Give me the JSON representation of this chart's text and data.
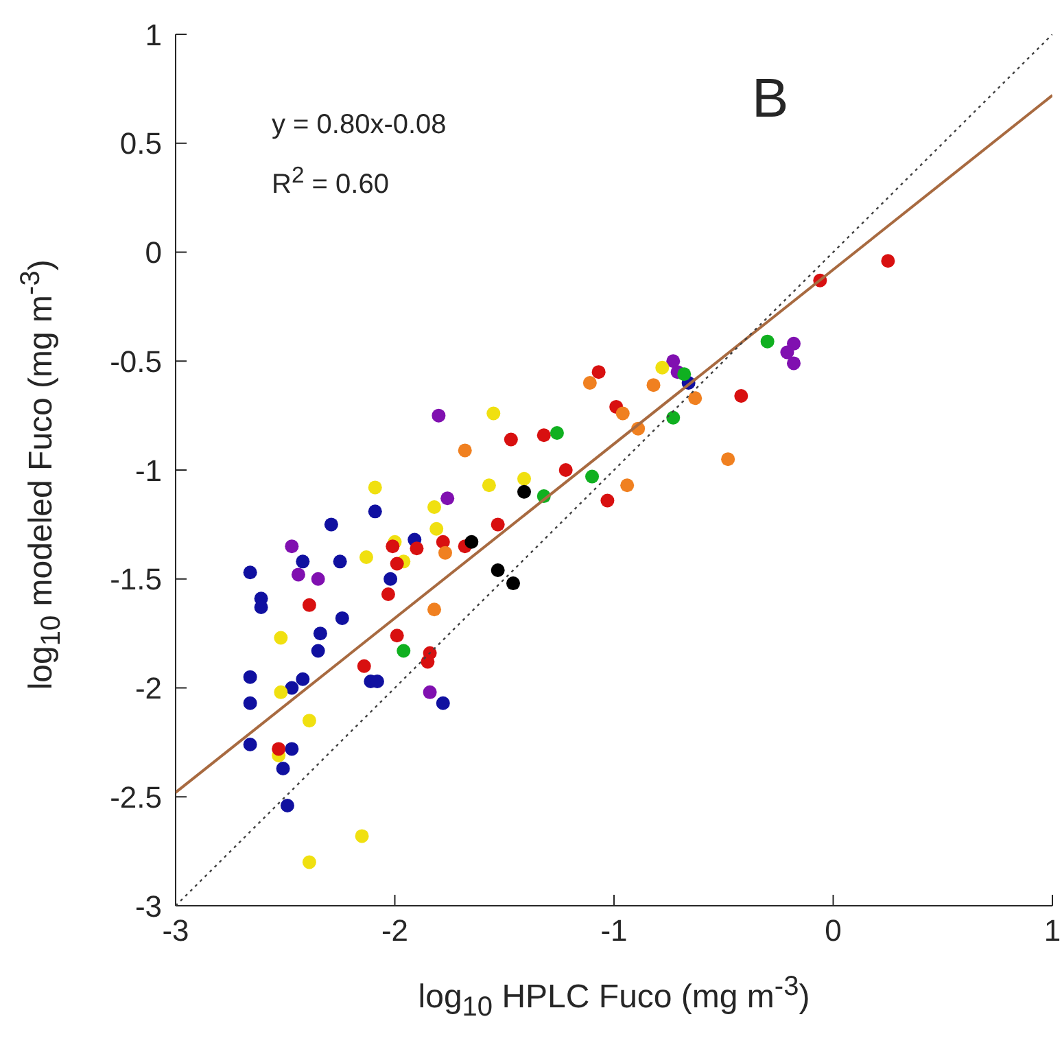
{
  "chart_data": {
    "type": "scatter",
    "xlabel": "log$_{10}$ HPLC Fuco (mg m$^{-3}$)",
    "ylabel": "log$_{10}$ modeled Fuco (mg m$^{-3}$)",
    "annotations": [
      "y = 0.80x-0.08",
      "R$^{2}$ = 0.60",
      "B"
    ],
    "xlim": [
      -3,
      1
    ],
    "ylim": [
      -3,
      1
    ],
    "xticks": [
      -3,
      -2,
      -1,
      0,
      1
    ],
    "yticks": [
      -3,
      -2.5,
      -2,
      -1.5,
      -1,
      -0.5,
      0,
      0.5,
      1
    ],
    "marker": "circle",
    "series": [
      {
        "color": "#1010a0",
        "x": [
          -2.09,
          -2.29,
          -2.42,
          -2.25,
          -1.91,
          -2.66,
          -2.02,
          -2.61,
          -2.61,
          -2.24,
          -2.34,
          -2.35,
          -2.66,
          -2.42,
          -2.47,
          -2.11,
          -2.08,
          -2.66,
          -1.78,
          -2.66,
          -2.47,
          -2.51,
          -2.49,
          -0.66
        ],
        "values": [
          -1.19,
          -1.25,
          -1.42,
          -1.42,
          -1.32,
          -1.47,
          -1.5,
          -1.59,
          -1.63,
          -1.68,
          -1.75,
          -1.83,
          -1.95,
          -1.96,
          -2.0,
          -1.97,
          -1.97,
          -2.07,
          -2.07,
          -2.26,
          -2.28,
          -2.37,
          -2.54,
          -0.6
        ]
      },
      {
        "color": "#8010b0",
        "x": [
          -1.8,
          -1.76,
          -2.47,
          -2.44,
          -2.35,
          -1.84,
          -0.73,
          -0.71,
          -0.18,
          -0.21,
          -0.18
        ],
        "values": [
          -0.75,
          -1.13,
          -1.35,
          -1.48,
          -1.5,
          -2.02,
          -0.5,
          -0.55,
          -0.42,
          -0.46,
          -0.51
        ]
      },
      {
        "color": "#f0e010",
        "x": [
          -2.09,
          -1.82,
          -1.81,
          -2.13,
          -2.0,
          -1.96,
          -2.52,
          -2.52,
          -2.39,
          -2.53,
          -2.15,
          -2.39,
          -0.78,
          -1.55,
          -1.57,
          -1.41
        ],
        "values": [
          -1.08,
          -1.17,
          -1.27,
          -1.4,
          -1.33,
          -1.42,
          -1.77,
          -2.02,
          -2.15,
          -2.31,
          -2.68,
          -2.8,
          -0.53,
          -0.74,
          -1.07,
          -1.04
        ]
      },
      {
        "color": "#d81010",
        "x": [
          -2.01,
          -1.9,
          -1.99,
          -1.78,
          -1.68,
          -2.03,
          -2.39,
          -1.99,
          -1.84,
          -1.85,
          -2.14,
          -2.53,
          -1.07,
          -0.99,
          -1.47,
          -1.32,
          -1.22,
          -1.03,
          -1.53,
          0.25,
          -0.06,
          -0.42
        ],
        "values": [
          -1.35,
          -1.36,
          -1.43,
          -1.33,
          -1.35,
          -1.57,
          -1.62,
          -1.76,
          -1.84,
          -1.88,
          -1.9,
          -2.28,
          -0.55,
          -0.71,
          -0.86,
          -0.84,
          -1.0,
          -1.14,
          -1.25,
          -0.04,
          -0.13,
          -0.66
        ]
      },
      {
        "color": "#f08020",
        "x": [
          -1.68,
          -1.77,
          -1.82,
          -1.11,
          -0.82,
          -0.63,
          -0.96,
          -0.89,
          -0.94,
          -0.48
        ],
        "values": [
          -0.91,
          -1.38,
          -1.64,
          -0.6,
          -0.61,
          -0.67,
          -0.74,
          -0.81,
          -1.07,
          -0.95
        ]
      },
      {
        "color": "#10b020",
        "x": [
          -1.96,
          -1.26,
          -1.1,
          -1.32,
          -0.73,
          -0.3,
          -0.68
        ],
        "values": [
          -1.83,
          -0.83,
          -1.03,
          -1.12,
          -0.76,
          -0.41,
          -0.56
        ]
      },
      {
        "color": "#000000",
        "x": [
          -1.65,
          -1.41,
          -1.53,
          -1.46
        ],
        "values": [
          -1.33,
          -1.1,
          -1.46,
          -1.52
        ]
      },
      {
        "type": "line",
        "marker": "none",
        "color": "#a86a40",
        "line_style": "solid",
        "x": [
          -3,
          1
        ],
        "values": [
          -2.48,
          0.72
        ]
      },
      {
        "type": "line",
        "marker": "none",
        "color": "#404040",
        "line_style": "dotted",
        "x": [
          -3,
          1
        ],
        "values": [
          -3,
          1
        ]
      }
    ]
  }
}
